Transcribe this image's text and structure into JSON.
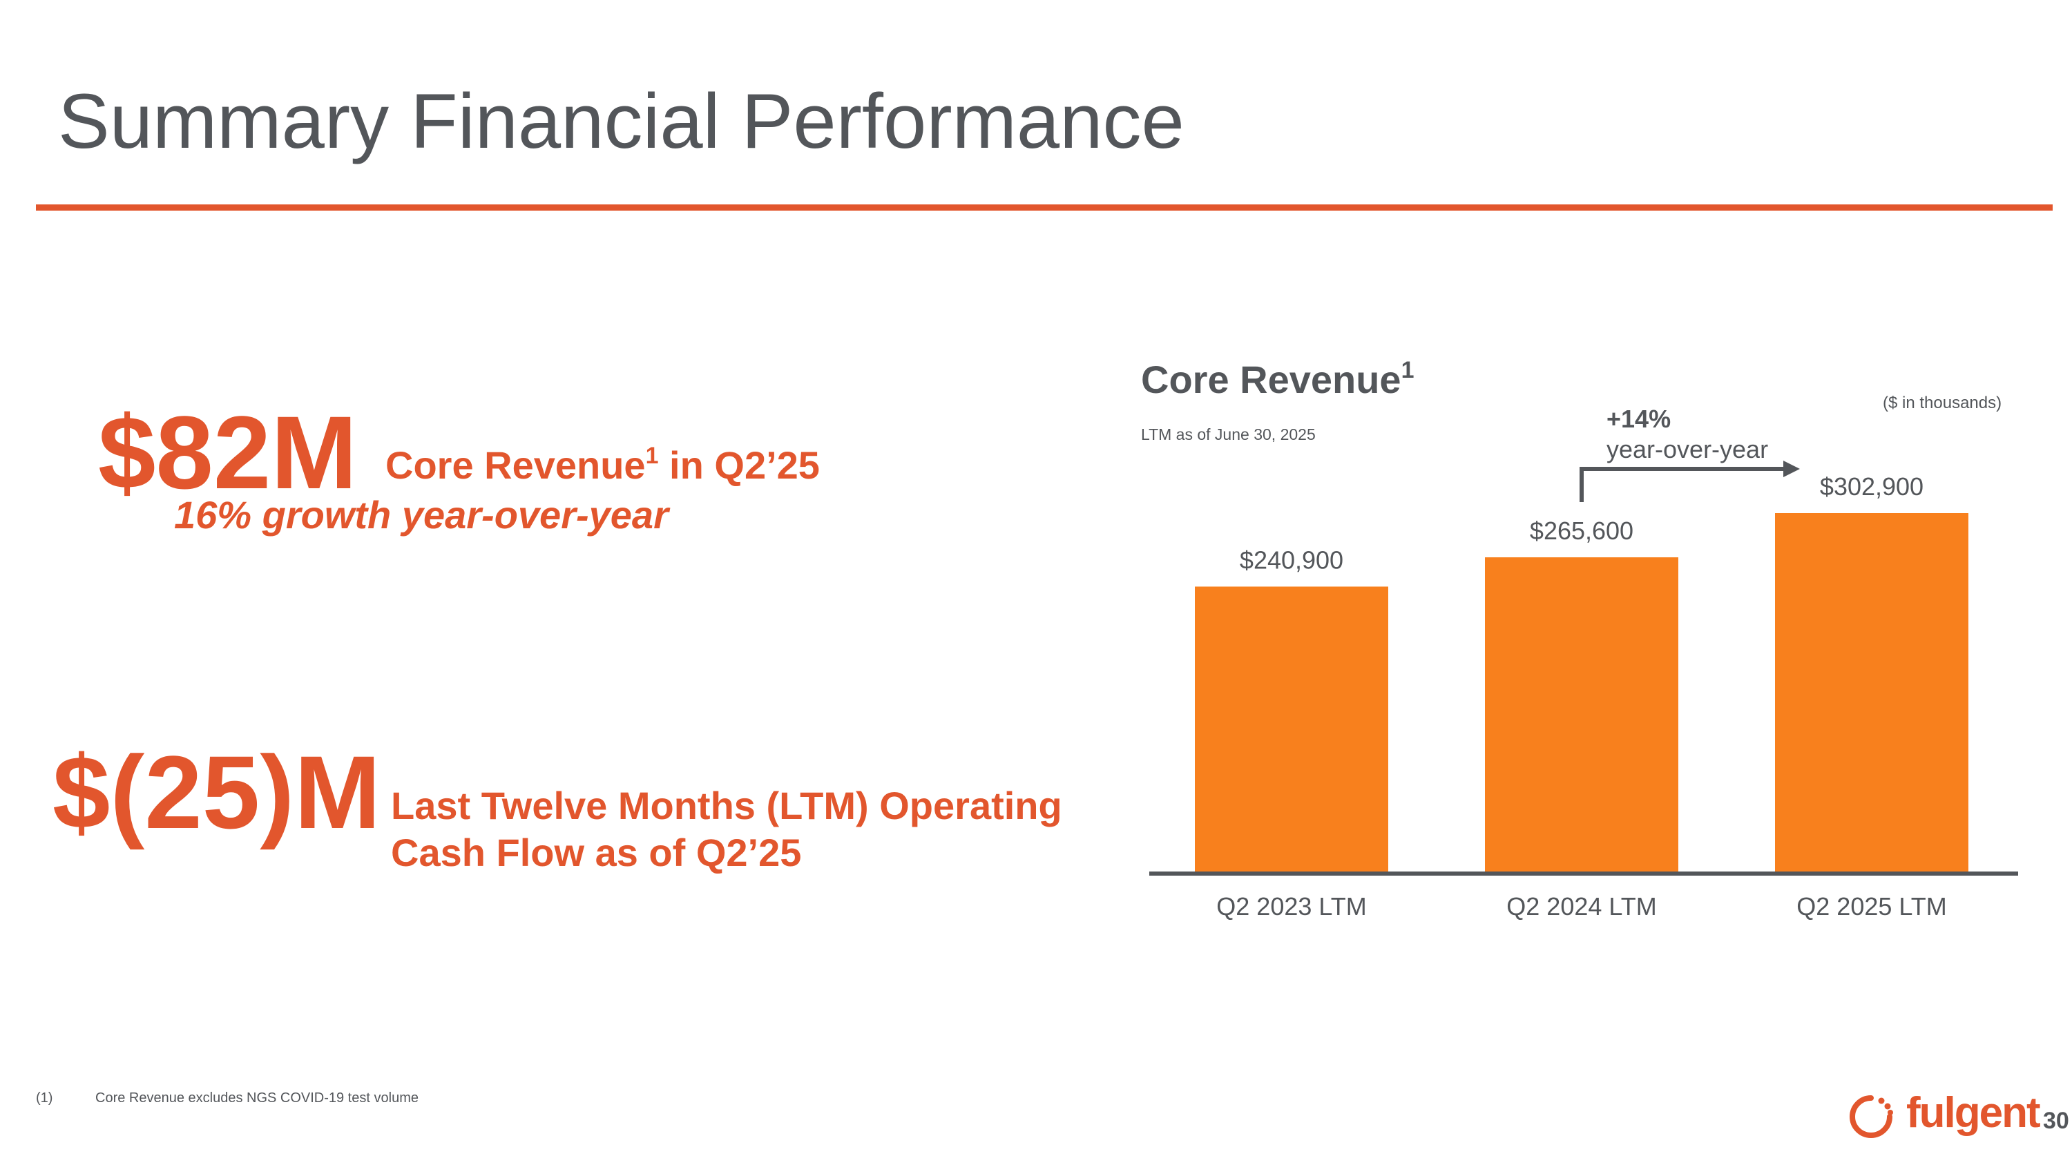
{
  "slide": {
    "title": "Summary Financial Performance",
    "page_number": "30",
    "accent_color": "#e2562d",
    "bar_color": "#f8801d",
    "text_color": "#53565a"
  },
  "kpis": [
    {
      "value": "$82M",
      "description": "Core Revenue",
      "superscript": "1",
      "description_suffix": " in Q2’25",
      "subtext": "16% growth year-over-year"
    },
    {
      "value": "$(25)M",
      "description": "Last Twelve Months (LTM) Operating Cash Flow as of Q2’25"
    }
  ],
  "chart_header": {
    "title": "Core Revenue",
    "superscript": "1",
    "subtitle": "LTM as of June 30, 2025",
    "units": "($ in thousands)",
    "growth_pct": "+14%",
    "growth_text": "year-over-year"
  },
  "chart_data": {
    "type": "bar",
    "categories": [
      "Q2 2023 LTM",
      "Q2 2024 LTM",
      "Q2 2025 LTM"
    ],
    "values": [
      240900,
      265600,
      302900
    ],
    "value_labels": [
      "$240,900",
      "$265,600",
      "$302,900"
    ],
    "title": "Core Revenue",
    "ylim": [
      0,
      302900
    ],
    "grid": false,
    "annotation": {
      "from_category": "Q2 2024 LTM",
      "to_category": "Q2 2025 LTM",
      "text": "+14% year-over-year"
    }
  },
  "footnote": {
    "number": "(1)",
    "text": "Core Revenue excludes NGS COVID-19 test volume"
  },
  "logo": {
    "text": "fulgent",
    "icon": "fulgent-logo-icon"
  }
}
